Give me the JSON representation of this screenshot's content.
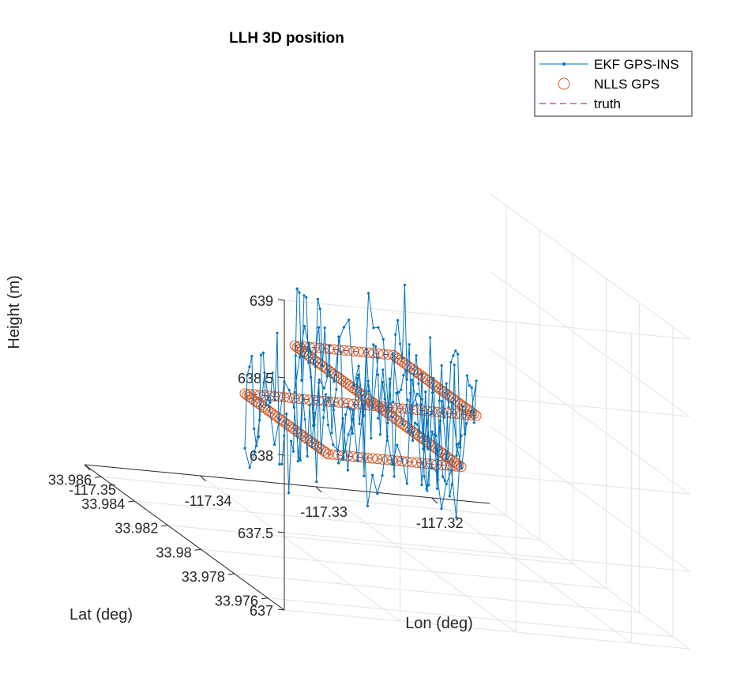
{
  "chart_data": {
    "type": "line",
    "projection": "3d",
    "title": "LLH 3D position",
    "xlabel": "Lon (deg)",
    "ylabel": "Lat (deg)",
    "zlabel": "Height (m)",
    "xlim": [
      -117.35,
      -117.315
    ],
    "ylim": [
      33.975,
      33.987
    ],
    "zlim": [
      637,
      639
    ],
    "xticks": [
      -117.35,
      -117.34,
      -117.33,
      -117.32
    ],
    "xticklabels": [
      "-117.35",
      "-117.34",
      "-117.33",
      "-117.32"
    ],
    "yticks": [
      33.976,
      33.978,
      33.98,
      33.982,
      33.984,
      33.986
    ],
    "yticklabels": [
      "33.976",
      "33.978",
      "33.98",
      "33.982",
      "33.984",
      "33.986"
    ],
    "zticks": [
      637,
      637.5,
      638,
      638.5,
      639
    ],
    "zticklabels": [
      "637",
      "637.5",
      "638",
      "638.5",
      "639"
    ],
    "grid": true,
    "legend_position": "top-right",
    "colors": {
      "ekf": "#0072BD",
      "nlls": "#D95319",
      "truth": "#A2142F"
    },
    "series": [
      {
        "name": "EKF GPS-INS",
        "style": "line-with-dots",
        "height_mean": 638,
        "height_noise_sd": 0.25
      },
      {
        "name": "NLLS GPS",
        "style": "circles",
        "height": 638
      },
      {
        "name": "truth",
        "style": "dashed",
        "height": 638
      }
    ],
    "path_waypoints": [
      {
        "lon": -117.334,
        "lat": 33.9805
      },
      {
        "lon": -117.3255,
        "lat": 33.9805
      },
      {
        "lon": -117.3255,
        "lat": 33.9855
      },
      {
        "lon": -117.334,
        "lat": 33.9855
      },
      {
        "lon": -117.334,
        "lat": 33.9805
      },
      {
        "lon": -117.334,
        "lat": 33.9755
      },
      {
        "lon": -117.3455,
        "lat": 33.9755
      },
      {
        "lon": -117.3455,
        "lat": 33.9805
      },
      {
        "lon": -117.334,
        "lat": 33.9805
      }
    ]
  }
}
